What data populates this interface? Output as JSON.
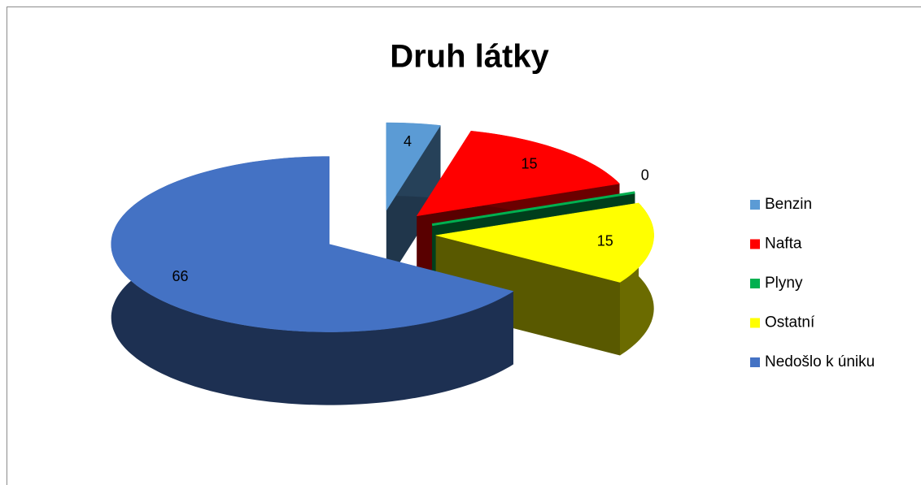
{
  "chart_data": {
    "type": "pie3d",
    "title": "Druh látky",
    "categories": [
      "Benzin",
      "Nafta",
      "Plyny",
      "Ostatní",
      "Nedošlo k úniku"
    ],
    "values": [
      4,
      15,
      0,
      15,
      66
    ],
    "colors": [
      "#5b9bd5",
      "#ff0000",
      "#00b050",
      "#ffff00",
      "#4472c4"
    ],
    "legend": "right"
  }
}
